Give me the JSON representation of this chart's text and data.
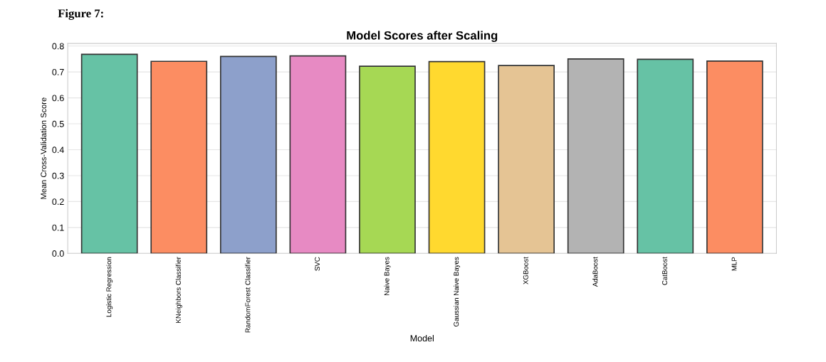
{
  "chart_data": {
    "type": "bar",
    "title": "Model Scores after Scaling",
    "xlabel": "Model",
    "ylabel": "Mean Cross-Validation Score",
    "annotations": [
      "Figure 7:"
    ],
    "categories": [
      "Logistic Regression",
      "KNeighbors Classifier",
      "RandomForest Classifier",
      "SVC",
      "Naive Bayes",
      "Gaussian Naive Bayes",
      "XGBoost",
      "AdaBoost",
      "CatBoost",
      "MLP"
    ],
    "values": [
      0.768,
      0.741,
      0.76,
      0.762,
      0.722,
      0.74,
      0.725,
      0.75,
      0.749,
      0.742
    ],
    "colors": [
      "#66c2a5",
      "#fc8d62",
      "#8da0cb",
      "#e78ac3",
      "#a6d854",
      "#ffd92f",
      "#e5c494",
      "#b3b3b3",
      "#66c2a5",
      "#fc8d62"
    ],
    "ylim": [
      0,
      0.81
    ],
    "yticks": [
      {
        "value": 0,
        "label": "0.0"
      },
      0.1,
      0.2,
      0.3,
      0.4,
      0.5,
      0.6,
      0.7,
      0.8
    ],
    "grid": "y"
  }
}
